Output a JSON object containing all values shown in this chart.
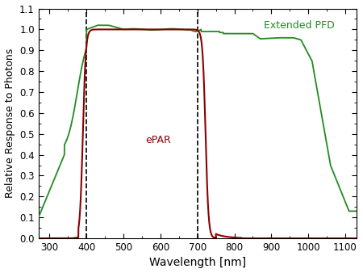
{
  "title": "",
  "xlabel": "Wavelength [nm]",
  "ylabel": "Relative Response to Photons",
  "xlim": [
    270,
    1130
  ],
  "ylim": [
    0.0,
    1.1
  ],
  "yticks": [
    0.0,
    0.1,
    0.2,
    0.3,
    0.4,
    0.5,
    0.6,
    0.7,
    0.8,
    0.9,
    1.0,
    1.1
  ],
  "xticks": [
    300,
    400,
    500,
    600,
    700,
    800,
    900,
    1000,
    1100
  ],
  "vline1": 400,
  "vline2": 700,
  "epar_color": "#8B0000",
  "epfd_color": "#228B22",
  "label_epar": "ePAR",
  "label_epfd": "Extended PFD",
  "bg_color": "#ffffff",
  "figsize": [
    4.5,
    3.38
  ],
  "dpi": 100
}
